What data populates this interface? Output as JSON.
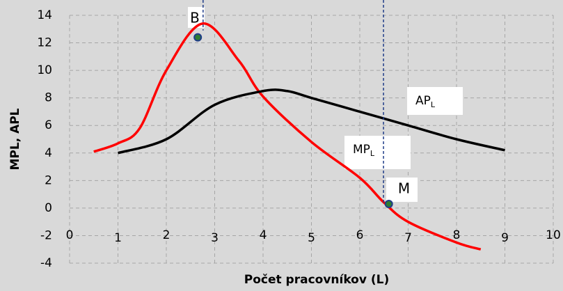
{
  "chart_data": {
    "type": "line",
    "ylabel": "MPL, APL",
    "xlabel": "Počet pracovníkov (L)",
    "xlim": [
      0,
      10
    ],
    "xticks": [
      0,
      1,
      2,
      3,
      4,
      5,
      6,
      7,
      8,
      9,
      10
    ],
    "ylim": [
      -4,
      14
    ],
    "yticks": [
      -4,
      -2,
      0,
      2,
      4,
      6,
      8,
      10,
      12,
      14
    ],
    "grid": true,
    "series": [
      {
        "color": "#ff0000",
        "x": [
          0.5,
          1,
          1.45,
          2,
          2.75,
          3.5,
          4,
          5,
          6,
          6.5,
          7,
          8,
          8.5
        ],
        "values": [
          4.1,
          4.7,
          5.8,
          10,
          13.4,
          10.7,
          8.1,
          4.8,
          2.2,
          0.4,
          -1,
          -2.5,
          -3
        ]
      },
      {
        "color": "#000000",
        "x": [
          1,
          2,
          3,
          4,
          4.5,
          5,
          6,
          7,
          8,
          9
        ],
        "values": [
          4,
          5,
          7.5,
          8.5,
          8.5,
          8,
          7,
          6,
          5,
          4.2
        ]
      }
    ],
    "points": [
      {
        "label": "B",
        "x": 2.65,
        "y": 12.4
      },
      {
        "label": "M",
        "x": 6.6,
        "y": 0.3
      }
    ],
    "vlines": [
      {
        "x": 2.76,
        "y": 12.9
      },
      {
        "x": 6.49,
        "y": 0.4
      }
    ],
    "annotations": [
      {
        "text": "AP",
        "sub": "L"
      },
      {
        "text": "MP",
        "sub": "L"
      }
    ]
  }
}
